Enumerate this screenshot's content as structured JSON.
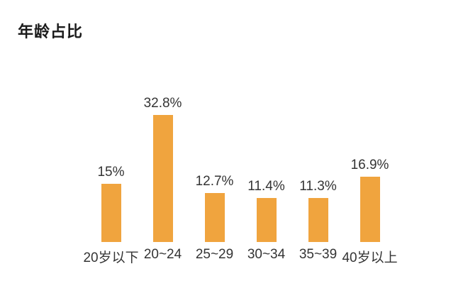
{
  "page": {
    "title": "年龄占比"
  },
  "chart_data": {
    "type": "bar",
    "title": "年龄占比",
    "categories": [
      "20岁以下",
      "20~24",
      "25~29",
      "30~34",
      "35~39",
      "40岁以上"
    ],
    "values": [
      15,
      32.8,
      12.7,
      11.4,
      11.3,
      16.9
    ],
    "value_labels": [
      "15%",
      "32.8%",
      "12.7%",
      "11.4%",
      "11.3%",
      "16.9%"
    ],
    "xlabel": "",
    "ylabel": "",
    "ylim": [
      0,
      40
    ],
    "grid": false,
    "legend": false,
    "axes_visible": false,
    "bar_color": "#F0A43E",
    "label_color": "#343434",
    "title_color": "#1b1b1b",
    "background_color": "#ffffff"
  }
}
